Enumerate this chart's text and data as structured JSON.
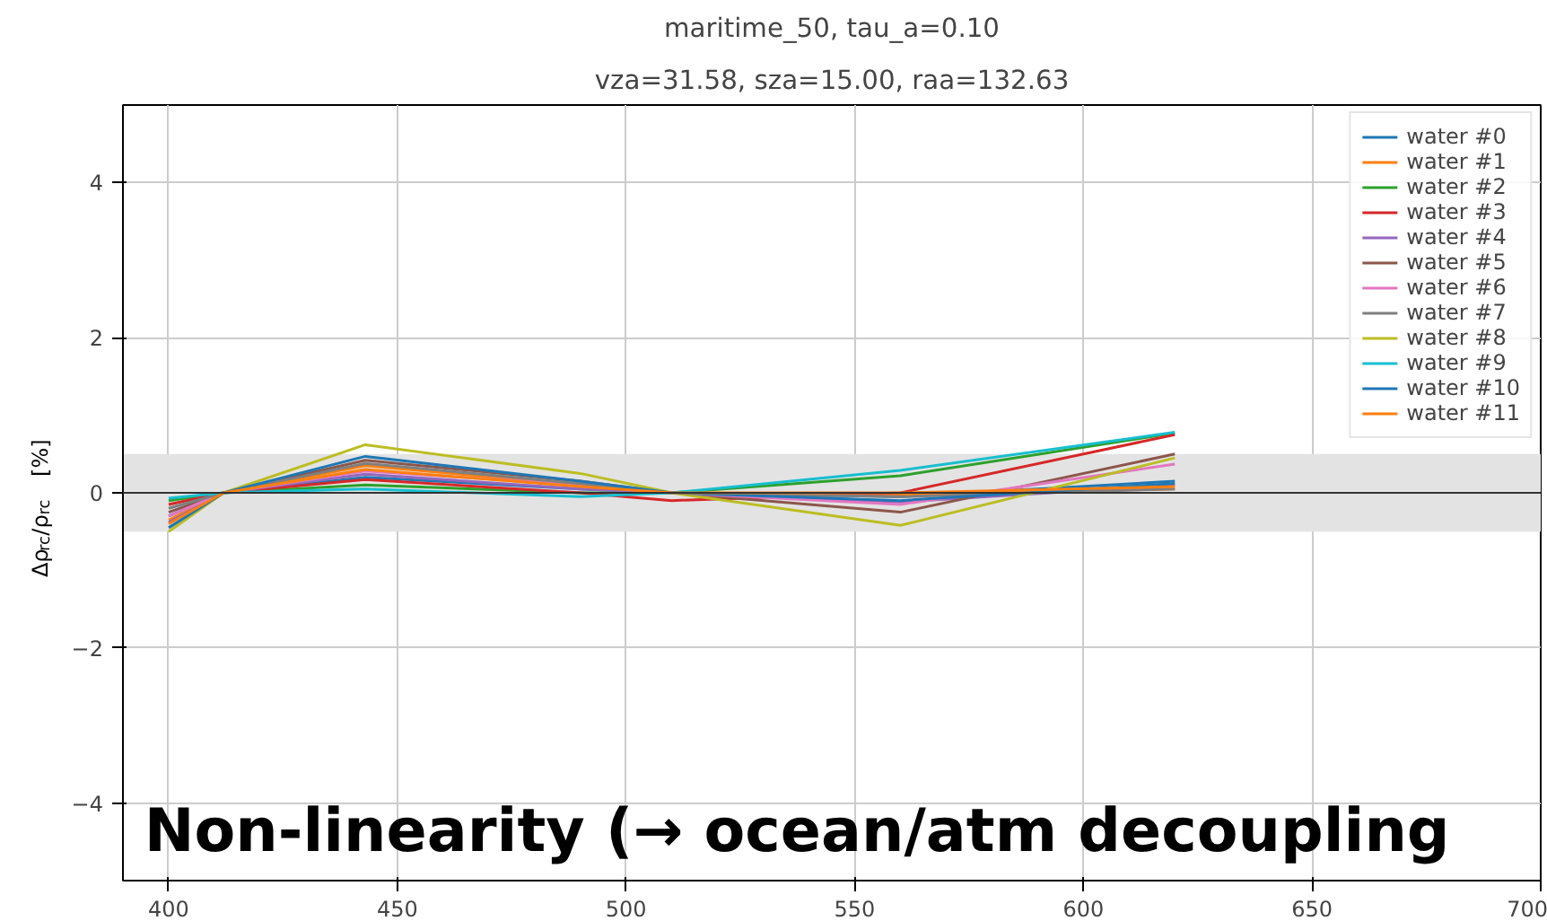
{
  "chart_data": {
    "type": "line",
    "title": "maritime_50, tau_a=0.10",
    "subtitle": "vza=31.58, sza=15.00, raa=132.63",
    "ylabel": "Δρ$_{rc}$/ρ$_{rc}$   [%]",
    "x": [
      400,
      412,
      443,
      490,
      510,
      560,
      620
    ],
    "xlim": [
      390,
      700
    ],
    "xticks": [
      400,
      450,
      500,
      550,
      600,
      650,
      700
    ],
    "ylim": [
      -5,
      5
    ],
    "yticks": [
      -4,
      -2,
      0,
      2,
      4
    ],
    "grid": true,
    "legend": "top right",
    "marker": "none",
    "line_style": "solid",
    "series": [
      {
        "name": "water #0",
        "color": "#1f77b4",
        "values": [
          -0.3,
          0,
          0.2,
          0.05,
          0,
          -0.05,
          0.15
        ]
      },
      {
        "name": "water #1",
        "color": "#ff7f0e",
        "values": [
          -0.35,
          0,
          0.35,
          0.1,
          0,
          -0.02,
          0.05
        ]
      },
      {
        "name": "water #2",
        "color": "#2ca02c",
        "values": [
          -0.1,
          0,
          0.1,
          0,
          0,
          0.22,
          0.77
        ]
      },
      {
        "name": "water #3",
        "color": "#d62728",
        "values": [
          -0.15,
          0,
          0.17,
          0,
          -0.1,
          0,
          0.75
        ]
      },
      {
        "name": "water #4",
        "color": "#9467bd",
        "values": [
          -0.38,
          0,
          0.24,
          0.05,
          0,
          -0.12,
          0.1
        ]
      },
      {
        "name": "water #5",
        "color": "#8c564b",
        "values": [
          -0.25,
          0,
          0.42,
          0.15,
          0,
          -0.25,
          0.5
        ]
      },
      {
        "name": "water #6",
        "color": "#e377c2",
        "values": [
          -0.3,
          0,
          0.28,
          0.1,
          0,
          -0.15,
          0.37
        ]
      },
      {
        "name": "water #7",
        "color": "#7f7f7f",
        "values": [
          -0.2,
          0,
          0.38,
          0.12,
          0,
          -0.05,
          0.05
        ]
      },
      {
        "name": "water #8",
        "color": "#bcbd22",
        "values": [
          -0.5,
          0,
          0.62,
          0.25,
          0,
          -0.42,
          0.45
        ]
      },
      {
        "name": "water #9",
        "color": "#17becf",
        "values": [
          -0.07,
          0,
          0.05,
          -0.05,
          0,
          0.29,
          0.78
        ]
      },
      {
        "name": "water #10",
        "color": "#1f77b4",
        "values": [
          -0.45,
          0,
          0.47,
          0.15,
          0,
          -0.1,
          0.12
        ]
      },
      {
        "name": "water #11",
        "color": "#ff7f0e",
        "values": [
          -0.4,
          0,
          0.3,
          0.08,
          0,
          0,
          0.08
        ]
      }
    ],
    "ref_lines": [
      {
        "axis": "y",
        "value": 0,
        "color": "#333333"
      }
    ],
    "bands": [
      {
        "axis": "y",
        "from": -0.5,
        "to": 0.5,
        "color": "#e3e3e3"
      }
    ],
    "annotations": [
      "Non-linearity (→ ocean/atm decoupling"
    ]
  }
}
